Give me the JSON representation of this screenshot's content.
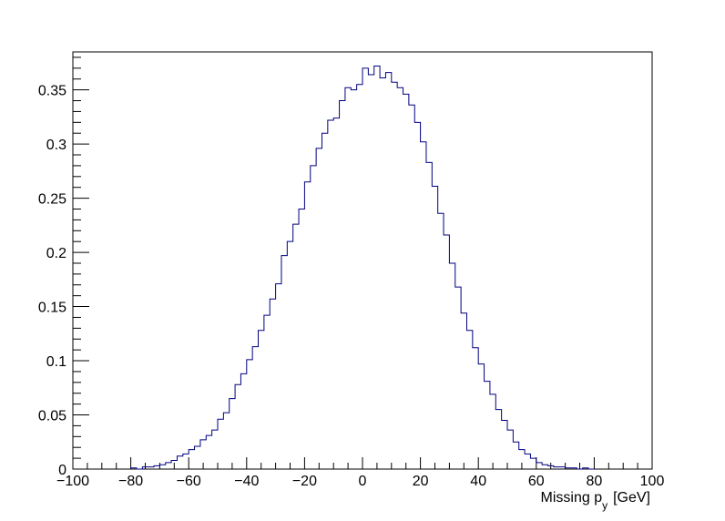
{
  "chart_data": {
    "type": "histogram",
    "title": "",
    "xlabel": {
      "main": "Missing p",
      "subscript": "y",
      "unit": "[GeV]"
    },
    "ylabel": "",
    "xlim": [
      -100,
      100
    ],
    "ylim": [
      0,
      0.385
    ],
    "bin_width": 2,
    "x_ticks": [
      -100,
      -80,
      -60,
      -40,
      -20,
      0,
      20,
      40,
      60,
      80,
      100
    ],
    "x_tick_labels": [
      "−100",
      "−80",
      "−60",
      "−40",
      "−20",
      "0",
      "20",
      "40",
      "60",
      "80",
      "100"
    ],
    "y_ticks": [
      0,
      0.05,
      0.1,
      0.15,
      0.2,
      0.25,
      0.3,
      0.35
    ],
    "y_tick_labels": [
      "0",
      "0.05",
      "0.1",
      "0.15",
      "0.2",
      "0.25",
      "0.3",
      "0.35"
    ],
    "line_color": "#000080",
    "grid": false,
    "legend": "none",
    "bins": [
      {
        "x_low": -80,
        "x_high": -78,
        "value": 0.001
      },
      {
        "x_low": -78,
        "x_high": -76,
        "value": 0.0
      },
      {
        "x_low": -76,
        "x_high": -74,
        "value": 0.002
      },
      {
        "x_low": -74,
        "x_high": -72,
        "value": 0.002
      },
      {
        "x_low": -72,
        "x_high": -70,
        "value": 0.003
      },
      {
        "x_low": -70,
        "x_high": -68,
        "value": 0.004
      },
      {
        "x_low": -68,
        "x_high": -66,
        "value": 0.006
      },
      {
        "x_low": -66,
        "x_high": -64,
        "value": 0.008
      },
      {
        "x_low": -64,
        "x_high": -62,
        "value": 0.012
      },
      {
        "x_low": -62,
        "x_high": -60,
        "value": 0.014
      },
      {
        "x_low": -60,
        "x_high": -58,
        "value": 0.018
      },
      {
        "x_low": -58,
        "x_high": -56,
        "value": 0.021
      },
      {
        "x_low": -56,
        "x_high": -54,
        "value": 0.027
      },
      {
        "x_low": -54,
        "x_high": -52,
        "value": 0.031
      },
      {
        "x_low": -52,
        "x_high": -50,
        "value": 0.036
      },
      {
        "x_low": -50,
        "x_high": -48,
        "value": 0.046
      },
      {
        "x_low": -48,
        "x_high": -46,
        "value": 0.052
      },
      {
        "x_low": -46,
        "x_high": -44,
        "value": 0.065
      },
      {
        "x_low": -44,
        "x_high": -42,
        "value": 0.078
      },
      {
        "x_low": -42,
        "x_high": -40,
        "value": 0.088
      },
      {
        "x_low": -40,
        "x_high": -38,
        "value": 0.101
      },
      {
        "x_low": -38,
        "x_high": -36,
        "value": 0.113
      },
      {
        "x_low": -36,
        "x_high": -34,
        "value": 0.128
      },
      {
        "x_low": -34,
        "x_high": -32,
        "value": 0.142
      },
      {
        "x_low": -32,
        "x_high": -30,
        "value": 0.157
      },
      {
        "x_low": -30,
        "x_high": -28,
        "value": 0.171
      },
      {
        "x_low": -28,
        "x_high": -26,
        "value": 0.197
      },
      {
        "x_low": -26,
        "x_high": -24,
        "value": 0.21
      },
      {
        "x_low": -24,
        "x_high": -22,
        "value": 0.226
      },
      {
        "x_low": -22,
        "x_high": -20,
        "value": 0.24
      },
      {
        "x_low": -20,
        "x_high": -18,
        "value": 0.265
      },
      {
        "x_low": -18,
        "x_high": -16,
        "value": 0.28
      },
      {
        "x_low": -16,
        "x_high": -14,
        "value": 0.296
      },
      {
        "x_low": -14,
        "x_high": -12,
        "value": 0.31
      },
      {
        "x_low": -12,
        "x_high": -10,
        "value": 0.322
      },
      {
        "x_low": -10,
        "x_high": -8,
        "value": 0.324
      },
      {
        "x_low": -8,
        "x_high": -6,
        "value": 0.34
      },
      {
        "x_low": -6,
        "x_high": -4,
        "value": 0.352
      },
      {
        "x_low": -4,
        "x_high": -2,
        "value": 0.35
      },
      {
        "x_low": -2,
        "x_high": 0,
        "value": 0.355
      },
      {
        "x_low": 0,
        "x_high": 2,
        "value": 0.37
      },
      {
        "x_low": 2,
        "x_high": 4,
        "value": 0.364
      },
      {
        "x_low": 4,
        "x_high": 6,
        "value": 0.372
      },
      {
        "x_low": 6,
        "x_high": 8,
        "value": 0.361
      },
      {
        "x_low": 8,
        "x_high": 10,
        "value": 0.366
      },
      {
        "x_low": 10,
        "x_high": 12,
        "value": 0.357
      },
      {
        "x_low": 12,
        "x_high": 14,
        "value": 0.352
      },
      {
        "x_low": 14,
        "x_high": 16,
        "value": 0.346
      },
      {
        "x_low": 16,
        "x_high": 18,
        "value": 0.336
      },
      {
        "x_low": 18,
        "x_high": 20,
        "value": 0.32
      },
      {
        "x_low": 20,
        "x_high": 22,
        "value": 0.302
      },
      {
        "x_low": 22,
        "x_high": 24,
        "value": 0.283
      },
      {
        "x_low": 24,
        "x_high": 26,
        "value": 0.261
      },
      {
        "x_low": 26,
        "x_high": 28,
        "value": 0.236
      },
      {
        "x_low": 28,
        "x_high": 30,
        "value": 0.216
      },
      {
        "x_low": 30,
        "x_high": 32,
        "value": 0.19
      },
      {
        "x_low": 32,
        "x_high": 34,
        "value": 0.168
      },
      {
        "x_low": 34,
        "x_high": 36,
        "value": 0.144
      },
      {
        "x_low": 36,
        "x_high": 38,
        "value": 0.128
      },
      {
        "x_low": 38,
        "x_high": 40,
        "value": 0.112
      },
      {
        "x_low": 40,
        "x_high": 42,
        "value": 0.097
      },
      {
        "x_low": 42,
        "x_high": 44,
        "value": 0.081
      },
      {
        "x_low": 44,
        "x_high": 46,
        "value": 0.069
      },
      {
        "x_low": 46,
        "x_high": 48,
        "value": 0.055
      },
      {
        "x_low": 48,
        "x_high": 50,
        "value": 0.045
      },
      {
        "x_low": 50,
        "x_high": 52,
        "value": 0.036
      },
      {
        "x_low": 52,
        "x_high": 54,
        "value": 0.025
      },
      {
        "x_low": 54,
        "x_high": 56,
        "value": 0.018
      },
      {
        "x_low": 56,
        "x_high": 58,
        "value": 0.014
      },
      {
        "x_low": 58,
        "x_high": 60,
        "value": 0.01
      },
      {
        "x_low": 60,
        "x_high": 62,
        "value": 0.006
      },
      {
        "x_low": 62,
        "x_high": 64,
        "value": 0.004
      },
      {
        "x_low": 64,
        "x_high": 66,
        "value": 0.003
      },
      {
        "x_low": 66,
        "x_high": 68,
        "value": 0.002
      },
      {
        "x_low": 68,
        "x_high": 70,
        "value": 0.002
      },
      {
        "x_low": 70,
        "x_high": 72,
        "value": 0.001
      },
      {
        "x_low": 72,
        "x_high": 74,
        "value": 0.001
      },
      {
        "x_low": 74,
        "x_high": 76,
        "value": 0.0
      },
      {
        "x_low": 76,
        "x_high": 78,
        "value": 0.001
      },
      {
        "x_low": 78,
        "x_high": 80,
        "value": 0.0
      }
    ]
  }
}
